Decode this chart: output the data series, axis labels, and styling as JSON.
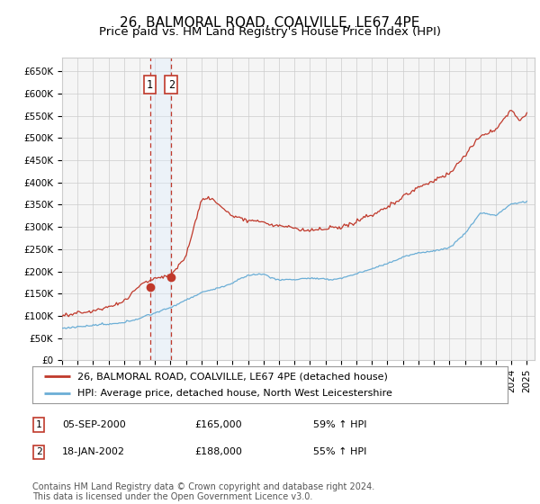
{
  "title": "26, BALMORAL ROAD, COALVILLE, LE67 4PE",
  "subtitle": "Price paid vs. HM Land Registry's House Price Index (HPI)",
  "ylim": [
    0,
    680000
  ],
  "yticks": [
    0,
    50000,
    100000,
    150000,
    200000,
    250000,
    300000,
    350000,
    400000,
    450000,
    500000,
    550000,
    600000,
    650000
  ],
  "ytick_labels": [
    "£0",
    "£50K",
    "£100K",
    "£150K",
    "£200K",
    "£250K",
    "£300K",
    "£350K",
    "£400K",
    "£450K",
    "£500K",
    "£550K",
    "£600K",
    "£650K"
  ],
  "hpi_color": "#6baed6",
  "price_color": "#c0392b",
  "sale1_date": 2000.67,
  "sale1_price": 165000,
  "sale2_date": 2002.05,
  "sale2_price": 188000,
  "vline_color": "#c0392b",
  "shade_color": "#ddeeff",
  "legend_label1": "26, BALMORAL ROAD, COALVILLE, LE67 4PE (detached house)",
  "legend_label2": "HPI: Average price, detached house, North West Leicestershire",
  "table_row1": [
    "1",
    "05-SEP-2000",
    "£165,000",
    "59% ↑ HPI"
  ],
  "table_row2": [
    "2",
    "18-JAN-2002",
    "£188,000",
    "55% ↑ HPI"
  ],
  "footnote": "Contains HM Land Registry data © Crown copyright and database right 2024.\nThis data is licensed under the Open Government Licence v3.0.",
  "background_color": "#ffffff",
  "plot_bg_color": "#f5f5f5",
  "grid_color": "#cccccc",
  "title_fontsize": 11,
  "subtitle_fontsize": 9.5,
  "tick_fontsize": 7.5,
  "legend_fontsize": 8,
  "footnote_fontsize": 7,
  "hpi_waypoints_x": [
    1995,
    1996,
    1997,
    1998,
    1999,
    2000,
    2001,
    2002,
    2003,
    2004,
    2005,
    2006,
    2007,
    2008,
    2009,
    2010,
    2011,
    2012,
    2013,
    2014,
    2015,
    2016,
    2017,
    2018,
    2019,
    2020,
    2021,
    2022,
    2023,
    2024,
    2025
  ],
  "hpi_waypoints_y": [
    72000,
    74000,
    76000,
    80000,
    86000,
    95000,
    108000,
    120000,
    135000,
    152000,
    162000,
    175000,
    192000,
    195000,
    180000,
    182000,
    185000,
    182000,
    185000,
    195000,
    208000,
    220000,
    235000,
    245000,
    252000,
    258000,
    290000,
    335000,
    330000,
    355000,
    360000
  ],
  "red_waypoints_x": [
    1995,
    1996,
    1997,
    1998,
    1999,
    2000,
    2001,
    2002,
    2003,
    2004,
    2004.5,
    2005,
    2006,
    2007,
    2008,
    2009,
    2010,
    2011,
    2012,
    2013,
    2014,
    2015,
    2016,
    2017,
    2018,
    2019,
    2020,
    2021,
    2022,
    2023,
    2024,
    2024.5,
    2025
  ],
  "red_waypoints_y": [
    100000,
    105000,
    110000,
    118000,
    130000,
    165000,
    180000,
    188000,
    230000,
    355000,
    360000,
    345000,
    315000,
    310000,
    305000,
    295000,
    290000,
    285000,
    285000,
    290000,
    305000,
    320000,
    340000,
    365000,
    385000,
    400000,
    415000,
    455000,
    500000,
    520000,
    565000,
    540000,
    555000
  ]
}
